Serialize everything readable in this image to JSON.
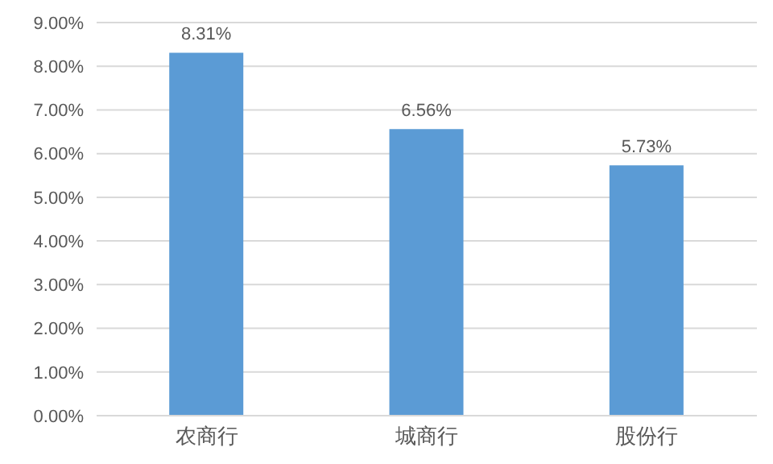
{
  "chart_data": {
    "type": "bar",
    "categories": [
      "农商行",
      "城商行",
      "股份行"
    ],
    "values": [
      8.31,
      6.56,
      5.73
    ],
    "color": "#5b9bd5",
    "value_labels": [
      "8.31%",
      "6.56%",
      "5.73%"
    ],
    "ylim": [
      0,
      9
    ],
    "yticks": [
      {
        "value": 0,
        "label": "0.00%"
      },
      {
        "value": 1,
        "label": "1.00%"
      },
      {
        "value": 2,
        "label": "2.00%"
      },
      {
        "value": 3,
        "label": "3.00%"
      },
      {
        "value": 4,
        "label": "4.00%"
      },
      {
        "value": 5,
        "label": "5.00%"
      },
      {
        "value": 6,
        "label": "6.00%"
      },
      {
        "value": 7,
        "label": "7.00%"
      },
      {
        "value": 8,
        "label": "8.00%"
      },
      {
        "value": 9,
        "label": "9.00%"
      }
    ],
    "grid": "y"
  }
}
